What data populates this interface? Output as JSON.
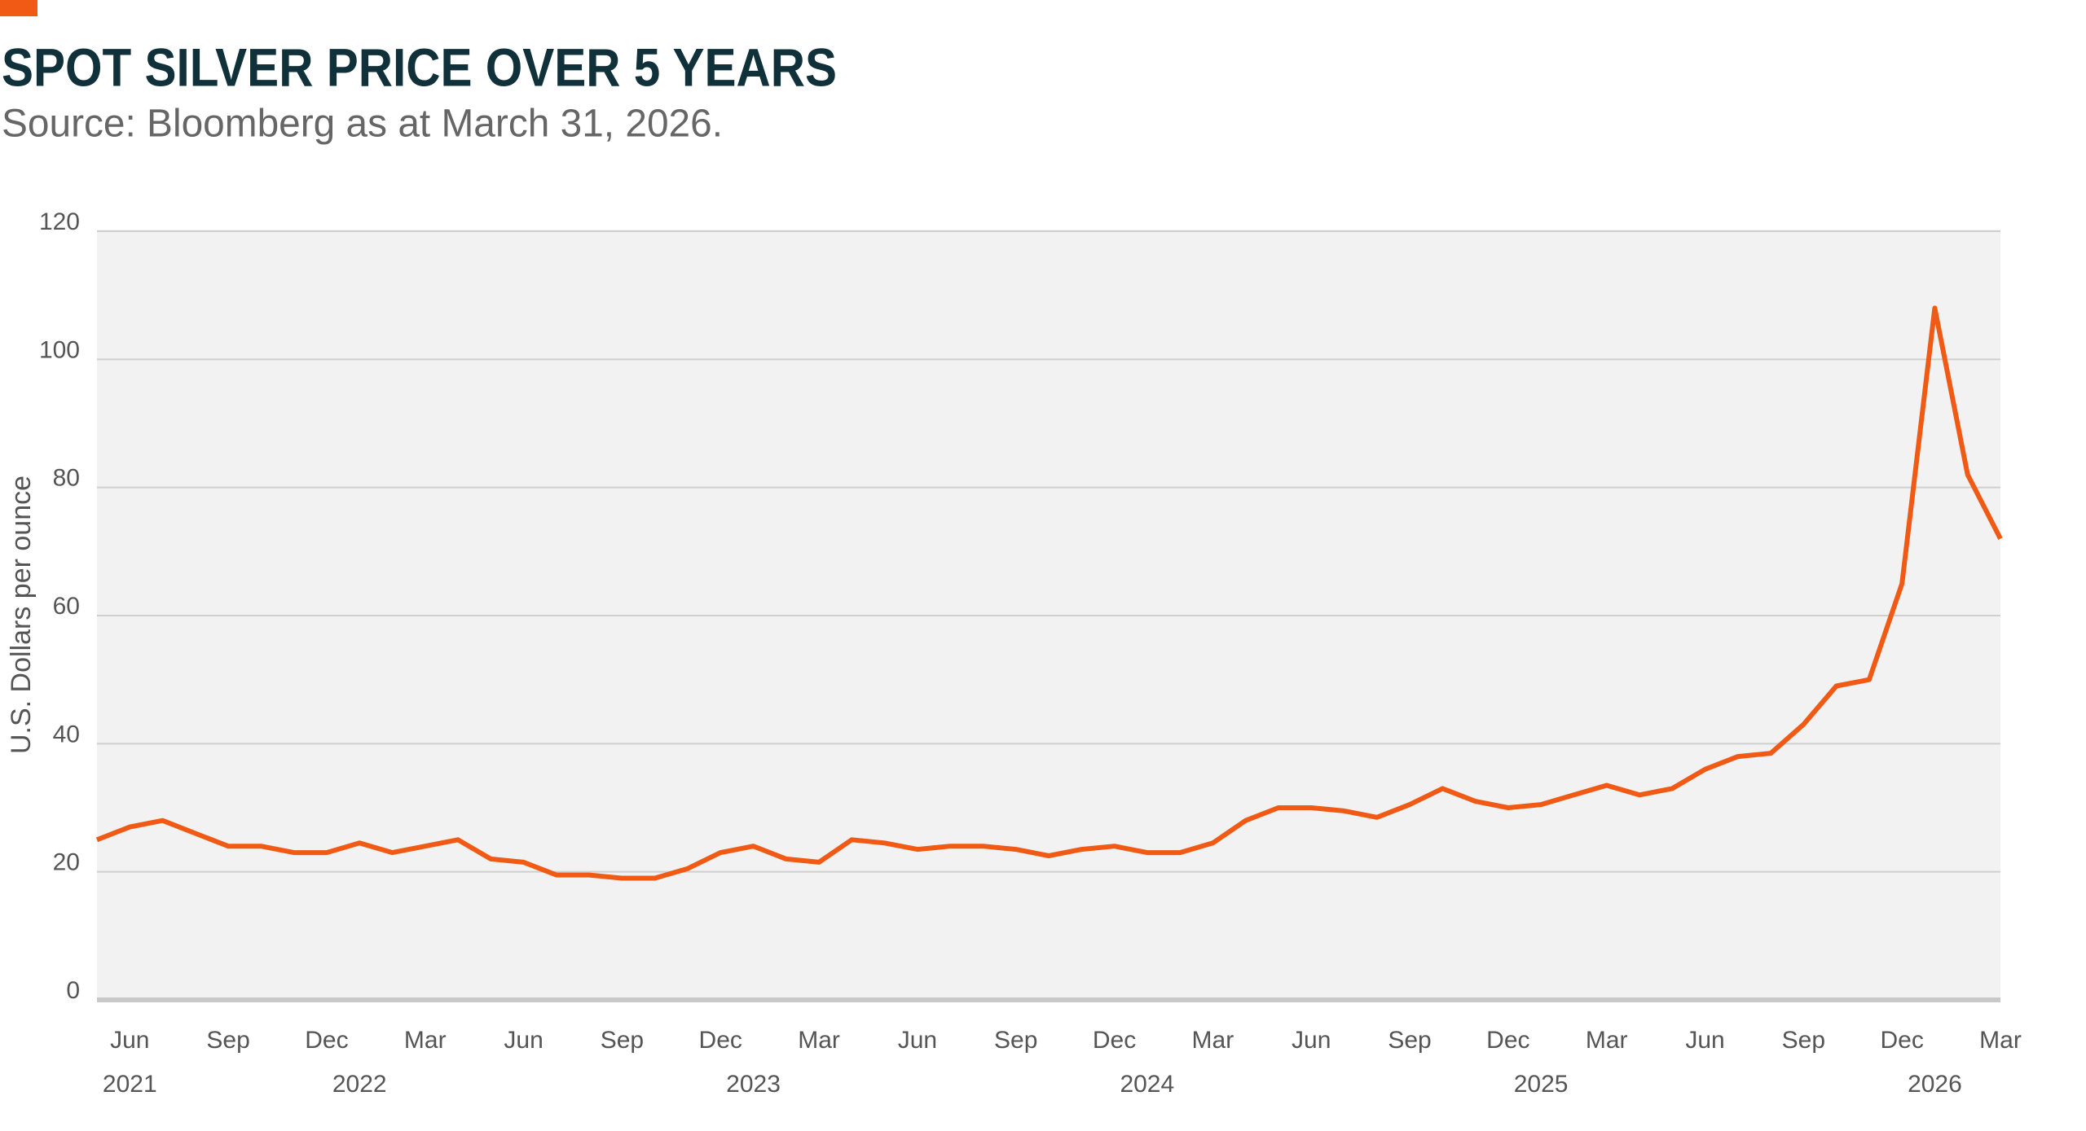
{
  "chart_data": {
    "type": "line",
    "title": "SPOT SILVER PRICE OVER 5 YEARS",
    "subtitle": "Source: Bloomberg as at March 31, 2026.",
    "y_label": "U.S. Dollars per ounce",
    "color": "#f05a14",
    "grid": true,
    "ylim": [
      0,
      120
    ],
    "yticks": [
      0,
      20,
      40,
      60,
      80,
      100,
      120
    ],
    "xlim": [
      "2021-05",
      "2026-03"
    ],
    "xticks": [
      {
        "value": "2021-06",
        "label": "Jun"
      },
      {
        "value": "2021-09",
        "label": "Sep"
      },
      {
        "value": "2021-12",
        "label": "Dec"
      },
      {
        "value": "2022-03",
        "label": "Mar"
      },
      {
        "value": "2022-06",
        "label": "Jun"
      },
      {
        "value": "2022-09",
        "label": "Sep"
      },
      {
        "value": "2022-12",
        "label": "Dec"
      },
      {
        "value": "2023-03",
        "label": "Mar"
      },
      {
        "value": "2023-06",
        "label": "Jun"
      },
      {
        "value": "2023-09",
        "label": "Sep"
      },
      {
        "value": "2023-12",
        "label": "Dec"
      },
      {
        "value": "2024-03",
        "label": "Mar"
      },
      {
        "value": "2024-06",
        "label": "Jun"
      },
      {
        "value": "2024-09",
        "label": "Sep"
      },
      {
        "value": "2024-12",
        "label": "Dec"
      },
      {
        "value": "2025-03",
        "label": "Mar"
      },
      {
        "value": "2025-06",
        "label": "Jun"
      },
      {
        "value": "2025-09",
        "label": "Sep"
      },
      {
        "value": "2025-12",
        "label": "Dec"
      },
      {
        "value": "2026-03",
        "label": "Mar"
      }
    ],
    "xyears": [
      {
        "value": "2021-06",
        "label": "2021"
      },
      {
        "value": "2022-01",
        "label": "2022"
      },
      {
        "value": "2023-01",
        "label": "2023"
      },
      {
        "value": "2024-01",
        "label": "2024"
      },
      {
        "value": "2025-01",
        "label": "2025"
      },
      {
        "value": "2026-01",
        "label": "2026"
      }
    ],
    "x": [
      "2021-05",
      "2021-06",
      "2021-07",
      "2021-08",
      "2021-09",
      "2021-10",
      "2021-11",
      "2021-12",
      "2022-01",
      "2022-02",
      "2022-03",
      "2022-04",
      "2022-05",
      "2022-06",
      "2022-07",
      "2022-08",
      "2022-09",
      "2022-10",
      "2022-11",
      "2022-12",
      "2023-01",
      "2023-02",
      "2023-03",
      "2023-04",
      "2023-05",
      "2023-06",
      "2023-07",
      "2023-08",
      "2023-09",
      "2023-10",
      "2023-11",
      "2023-12",
      "2024-01",
      "2024-02",
      "2024-03",
      "2024-04",
      "2024-05",
      "2024-06",
      "2024-07",
      "2024-08",
      "2024-09",
      "2024-10",
      "2024-11",
      "2024-12",
      "2025-01",
      "2025-02",
      "2025-03",
      "2025-04",
      "2025-05",
      "2025-06",
      "2025-07",
      "2025-08",
      "2025-09",
      "2025-10",
      "2025-11",
      "2025-12",
      "2026-01",
      "2026-02",
      "2026-03"
    ],
    "values": [
      25,
      27,
      28,
      26,
      24,
      24,
      23,
      23,
      24.5,
      23,
      24,
      25,
      22,
      21.5,
      19.5,
      19.5,
      19,
      19,
      20.5,
      23,
      24,
      22,
      21.5,
      25,
      24.5,
      23.5,
      24,
      24,
      23.5,
      22.5,
      23.5,
      24,
      23,
      23,
      24.5,
      28,
      30,
      30,
      29.5,
      28.5,
      30.5,
      33,
      31,
      30,
      30.5,
      32,
      33.5,
      32,
      33,
      36,
      38,
      38.5,
      43,
      49,
      50,
      65,
      108,
      82,
      72
    ]
  }
}
